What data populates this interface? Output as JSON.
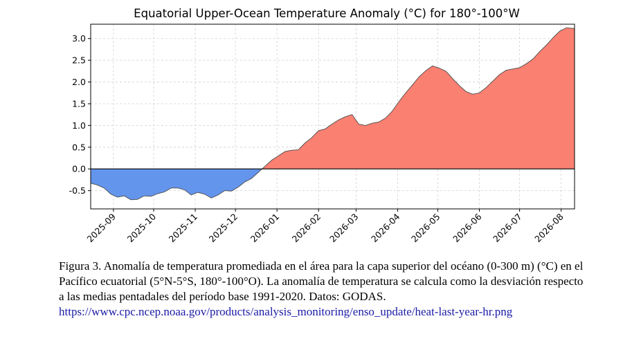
{
  "chart_data": {
    "type": "area",
    "title": "Equatorial Upper-Ocean Temperature Anomaly (°C) for 180°-100°W",
    "xlabel": "",
    "ylabel": "",
    "x_start": "2025-08-15",
    "x_end": "2026-08-11",
    "x_ticks": [
      "2025-09",
      "2025-10",
      "2025-11",
      "2025-12",
      "2026-01",
      "2026-02",
      "2026-03",
      "2026-04",
      "2026-05",
      "2026-06",
      "2026-07",
      "2026-08"
    ],
    "y_ticks": [
      -0.5,
      0.0,
      0.5,
      1.0,
      1.5,
      2.0,
      2.5,
      3.0
    ],
    "ylim": [
      -0.92,
      3.33
    ],
    "grid": true,
    "positive_color": "#fa8072",
    "negative_color": "#6495ed",
    "x": [
      "2025-08-15",
      "2025-08-20",
      "2025-08-25",
      "2025-08-30",
      "2025-09-04",
      "2025-09-09",
      "2025-09-14",
      "2025-09-19",
      "2025-09-24",
      "2025-09-29",
      "2025-10-04",
      "2025-10-09",
      "2025-10-14",
      "2025-10-19",
      "2025-10-24",
      "2025-10-29",
      "2025-11-03",
      "2025-11-08",
      "2025-11-13",
      "2025-11-18",
      "2025-11-23",
      "2025-11-28",
      "2025-12-03",
      "2025-12-08",
      "2025-12-13",
      "2025-12-18",
      "2025-12-23",
      "2025-12-28",
      "2026-01-02",
      "2026-01-07",
      "2026-01-12",
      "2026-01-17",
      "2026-01-22",
      "2026-01-27",
      "2026-02-01",
      "2026-02-06",
      "2026-02-11",
      "2026-02-16",
      "2026-02-21",
      "2026-02-26",
      "2026-03-03",
      "2026-03-08",
      "2026-03-13",
      "2026-03-18",
      "2026-03-23",
      "2026-03-28",
      "2026-04-02",
      "2026-04-07",
      "2026-04-12",
      "2026-04-17",
      "2026-04-22",
      "2026-04-27",
      "2026-05-02",
      "2026-05-07",
      "2026-05-12",
      "2026-05-17",
      "2026-05-22",
      "2026-05-27",
      "2026-06-01",
      "2026-06-06",
      "2026-06-11",
      "2026-06-16",
      "2026-06-21",
      "2026-06-26",
      "2026-07-01",
      "2026-07-06",
      "2026-07-11",
      "2026-07-16",
      "2026-07-21",
      "2026-07-26",
      "2026-07-31",
      "2026-08-05",
      "2026-08-11"
    ],
    "values": [
      -0.33,
      -0.37,
      -0.44,
      -0.58,
      -0.65,
      -0.62,
      -0.71,
      -0.7,
      -0.62,
      -0.63,
      -0.57,
      -0.53,
      -0.44,
      -0.44,
      -0.48,
      -0.6,
      -0.54,
      -0.58,
      -0.67,
      -0.6,
      -0.5,
      -0.51,
      -0.42,
      -0.3,
      -0.22,
      -0.08,
      0.06,
      0.2,
      0.3,
      0.4,
      0.43,
      0.44,
      0.6,
      0.72,
      0.88,
      0.92,
      1.03,
      1.13,
      1.2,
      1.25,
      1.03,
      1.0,
      1.05,
      1.08,
      1.17,
      1.33,
      1.55,
      1.75,
      1.93,
      2.12,
      2.26,
      2.37,
      2.32,
      2.25,
      2.08,
      1.92,
      1.78,
      1.72,
      1.75,
      1.87,
      2.02,
      2.17,
      2.27,
      2.3,
      2.33,
      2.42,
      2.53,
      2.7,
      2.85,
      3.02,
      3.17,
      3.25,
      3.23
    ]
  },
  "caption": {
    "text": "Figura 3. Anomalía de temperatura promediada en el área para la capa superior del océano (0-300 m) (°C) en el Pacífico ecuatorial (5°N-5°S, 180°-100°O). La anomalía de temperatura se calcula como la desviación respecto a las medias pentadales del período base 1991-2020. Datos: GODAS.",
    "link": "https://www.cpc.ncep.noaa.gov/products/analysis_monitoring/enso_update/heat-last-year-hr.png"
  }
}
